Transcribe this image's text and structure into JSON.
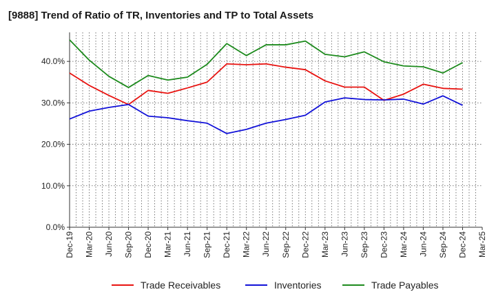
{
  "chart_data": {
    "type": "line",
    "title": "[9888]  Trend of Ratio of TR, Inventories and TP to Total Assets",
    "xlabel": "",
    "ylabel": "",
    "ylim": [
      0,
      47
    ],
    "y_ticks": [
      0,
      10,
      20,
      30,
      40
    ],
    "y_tick_labels": [
      "0.0%",
      "10.0%",
      "20.0%",
      "30.0%",
      "40.0%"
    ],
    "x_tick_labels": [
      "Dec-19",
      "Mar-20",
      "Jun-20",
      "Sep-20",
      "Dec-20",
      "Mar-21",
      "Jun-21",
      "Sep-21",
      "Dec-21",
      "Mar-22",
      "Jun-22",
      "Sep-22",
      "Dec-22",
      "Mar-23",
      "Jun-23",
      "Sep-23",
      "Dec-23",
      "Mar-24",
      "Jun-24",
      "Sep-24",
      "Dec-24",
      "Mar-25"
    ],
    "x": [
      "Dec-19",
      "Mar-20",
      "Jun-20",
      "Sep-20",
      "Dec-20",
      "Mar-21",
      "Jun-21",
      "Sep-21",
      "Dec-21",
      "Mar-22",
      "Jun-22",
      "Sep-22",
      "Dec-22",
      "Mar-23",
      "Jun-23",
      "Sep-23",
      "Dec-23",
      "Mar-24",
      "Jun-24",
      "Sep-24",
      "Dec-24"
    ],
    "grid": true,
    "legend_position": "bottom",
    "series": [
      {
        "name": "Trade Receivables",
        "color": "#e8120f",
        "values": [
          37.2,
          34.2,
          31.8,
          29.6,
          33.0,
          32.3,
          33.6,
          35.0,
          39.4,
          39.2,
          39.4,
          38.6,
          38.0,
          35.3,
          33.8,
          33.8,
          30.6,
          32.1,
          34.5,
          33.5,
          33.3
        ]
      },
      {
        "name": "Inventories",
        "color": "#1010d8",
        "values": [
          26.1,
          28.0,
          28.9,
          29.6,
          26.8,
          26.4,
          25.7,
          25.1,
          22.6,
          23.6,
          25.1,
          26.0,
          27.0,
          30.2,
          31.2,
          30.8,
          30.7,
          30.9,
          29.7,
          31.7,
          29.4
        ]
      },
      {
        "name": "Trade Payables",
        "color": "#1c8a1c",
        "values": [
          45.2,
          40.3,
          36.4,
          33.7,
          36.6,
          35.5,
          36.2,
          39.3,
          44.3,
          41.4,
          44.0,
          44.0,
          44.9,
          41.7,
          41.1,
          42.3,
          39.9,
          38.9,
          38.7,
          37.2,
          39.7
        ]
      }
    ]
  }
}
